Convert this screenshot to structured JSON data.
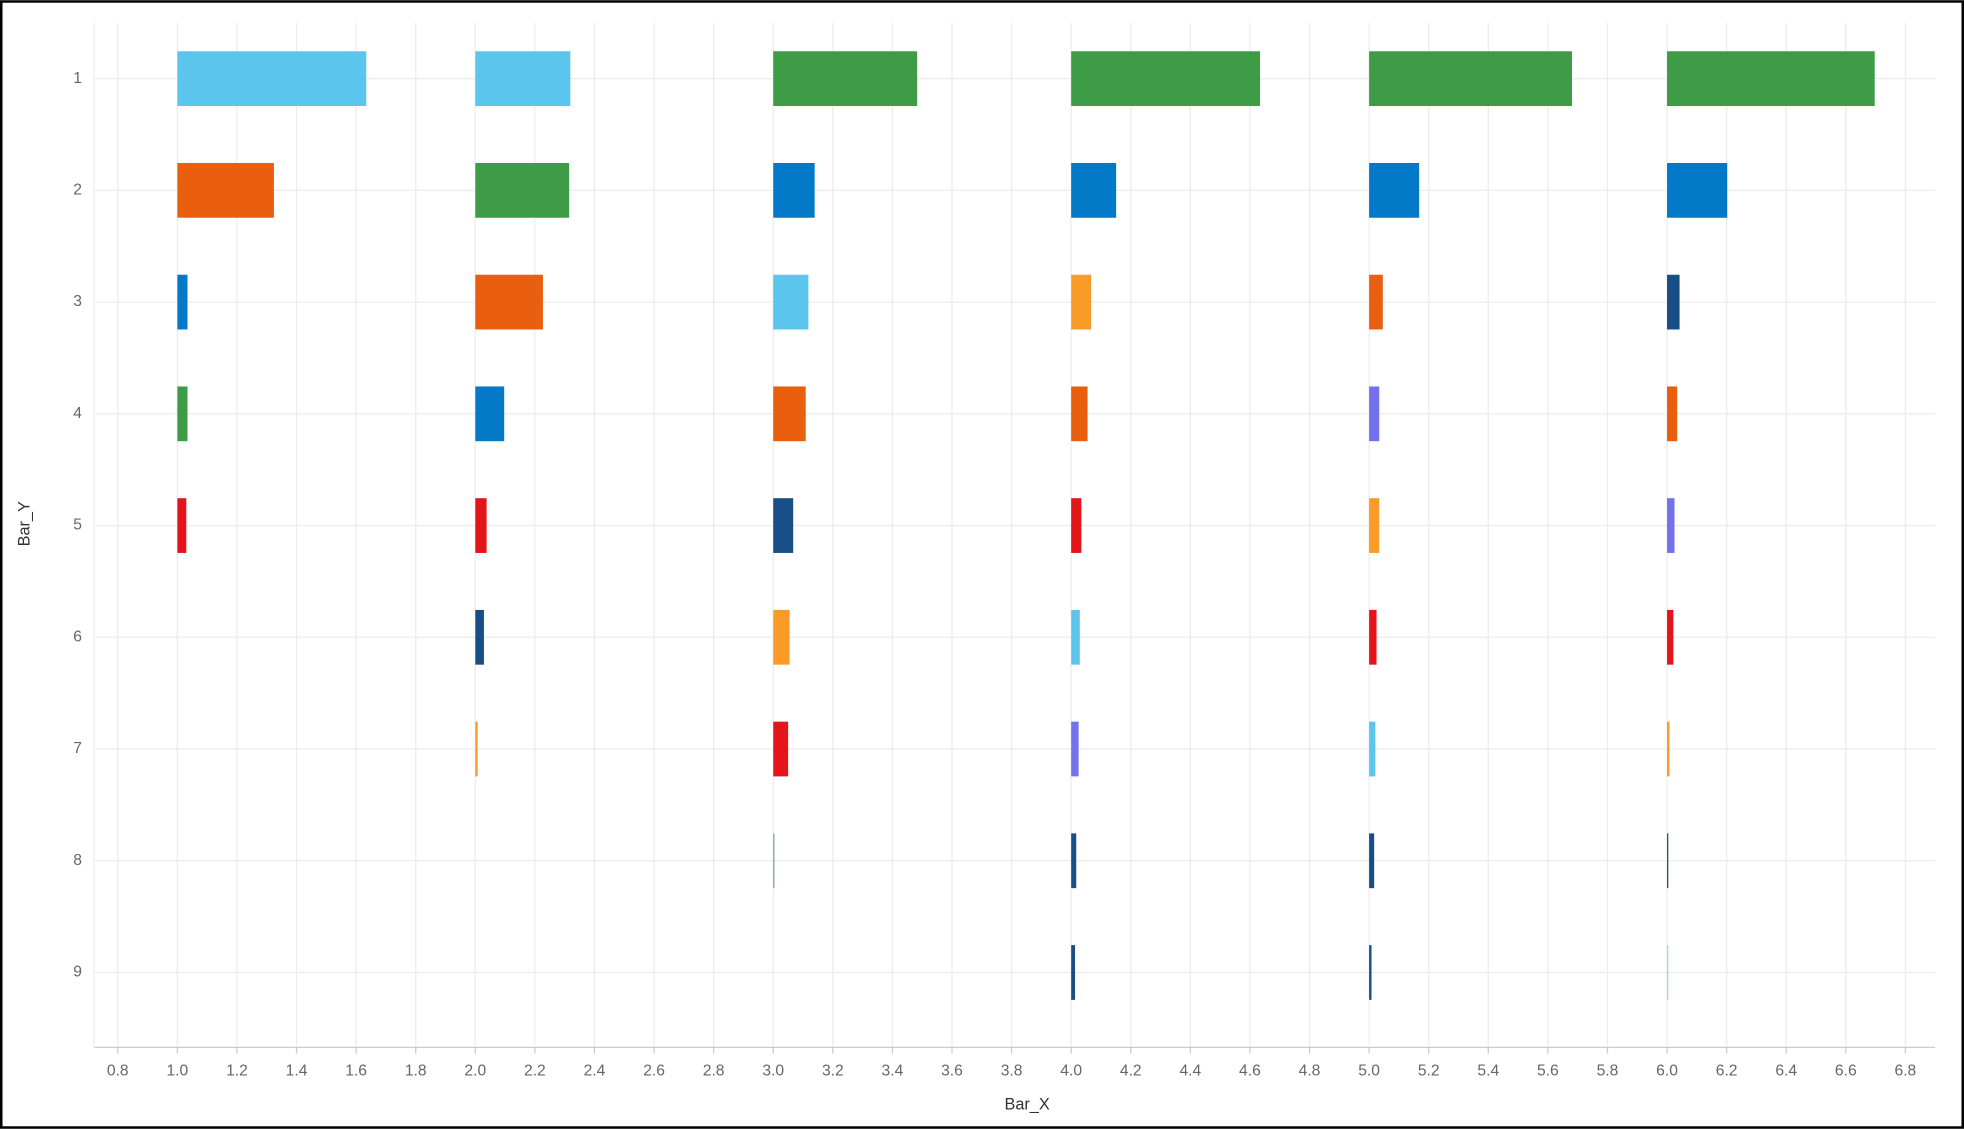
{
  "chart_data": {
    "type": "floating-bar",
    "x_label": "Bar_X",
    "y_label": "Bar_Y",
    "xlim": [
      0.72,
      6.9
    ],
    "xticks": [
      0.8,
      {
        "value": 1,
        "label": "1.0"
      },
      1.2,
      1.4,
      1.6,
      1.8,
      {
        "value": 2,
        "label": "2.0"
      },
      2.2,
      2.4,
      2.6,
      2.8,
      {
        "value": 3,
        "label": "3.0"
      },
      3.2,
      3.4,
      3.6,
      3.8,
      {
        "value": 4,
        "label": "4.0"
      },
      4.2,
      4.4,
      4.6,
      4.8,
      {
        "value": 5,
        "label": "5.0"
      },
      5.2,
      5.4,
      5.6,
      5.8,
      {
        "value": 6,
        "label": "6.0"
      },
      6.2,
      6.4,
      6.6,
      6.8
    ],
    "ylim": [
      0.5,
      9.67
    ],
    "yticks": [
      1,
      2,
      3,
      4,
      5,
      6,
      7,
      8,
      9
    ],
    "grid": true,
    "bars": [
      {
        "y": 1,
        "start": 1,
        "end": 1.634,
        "color": "#5bc5ee"
      },
      {
        "y": 2,
        "start": 1,
        "end": 1.324,
        "color": "#e95e0f"
      },
      {
        "y": 3,
        "start": 1,
        "end": 1.034,
        "color": "#0479c8"
      },
      {
        "y": 4,
        "start": 1,
        "end": 1.034,
        "color": "#3d9c45"
      },
      {
        "y": 5,
        "start": 1,
        "end": 1.03,
        "color": "#e3151a"
      },
      {
        "y": 1,
        "start": 2,
        "end": 2.319,
        "color": "#5bc5ee"
      },
      {
        "y": 2,
        "start": 2,
        "end": 2.315,
        "color": "#3d9c45"
      },
      {
        "y": 3,
        "start": 2,
        "end": 2.227,
        "color": "#e95e0f"
      },
      {
        "y": 4,
        "start": 2,
        "end": 2.097,
        "color": "#0479c8"
      },
      {
        "y": 5,
        "start": 2,
        "end": 2.038,
        "color": "#e3151a"
      },
      {
        "y": 6,
        "start": 2,
        "end": 2.029,
        "color": "#174e86"
      },
      {
        "y": 7,
        "start": 2,
        "end": 2.008,
        "color": "#fa9b27"
      },
      {
        "y": 1,
        "start": 3,
        "end": 3.483,
        "color": "#3d9c45"
      },
      {
        "y": 2,
        "start": 3,
        "end": 3.139,
        "color": "#0479c8"
      },
      {
        "y": 3,
        "start": 3,
        "end": 3.118,
        "color": "#5bc5ee"
      },
      {
        "y": 4,
        "start": 3,
        "end": 3.109,
        "color": "#e95e0f"
      },
      {
        "y": 5,
        "start": 3,
        "end": 3.067,
        "color": "#174e86"
      },
      {
        "y": 6,
        "start": 3,
        "end": 3.055,
        "color": "#fa9b27"
      },
      {
        "y": 7,
        "start": 3,
        "end": 3.05,
        "color": "#e3151a"
      },
      {
        "y": 8,
        "start": 3,
        "end": 3.004,
        "color": "#7f9fb5"
      },
      {
        "y": 1,
        "start": 4,
        "end": 4.634,
        "color": "#3d9c45"
      },
      {
        "y": 2,
        "start": 4,
        "end": 4.151,
        "color": "#0479c8"
      },
      {
        "y": 3,
        "start": 4,
        "end": 4.067,
        "color": "#fa9b27"
      },
      {
        "y": 4,
        "start": 4,
        "end": 4.055,
        "color": "#e95e0f"
      },
      {
        "y": 5,
        "start": 4,
        "end": 4.034,
        "color": "#e3151a"
      },
      {
        "y": 6,
        "start": 4,
        "end": 4.029,
        "color": "#5bc5ee"
      },
      {
        "y": 7,
        "start": 4,
        "end": 4.025,
        "color": "#7471ef"
      },
      {
        "y": 8,
        "start": 4,
        "end": 4.017,
        "color": "#174e86"
      },
      {
        "y": 9,
        "start": 4,
        "end": 4.013,
        "color": "#174e86"
      },
      {
        "y": 1,
        "start": 5,
        "end": 5.681,
        "color": "#3d9c45"
      },
      {
        "y": 2,
        "start": 5,
        "end": 5.168,
        "color": "#0479c8"
      },
      {
        "y": 3,
        "start": 5,
        "end": 5.046,
        "color": "#e95e0f"
      },
      {
        "y": 4,
        "start": 5,
        "end": 5.034,
        "color": "#7471ef"
      },
      {
        "y": 5,
        "start": 5,
        "end": 5.034,
        "color": "#fa9b27"
      },
      {
        "y": 6,
        "start": 5,
        "end": 5.025,
        "color": "#e3151a"
      },
      {
        "y": 7,
        "start": 5,
        "end": 5.021,
        "color": "#5bc5ee"
      },
      {
        "y": 8,
        "start": 5,
        "end": 5.017,
        "color": "#174e86"
      },
      {
        "y": 9,
        "start": 5,
        "end": 5.008,
        "color": "#174e86"
      },
      {
        "y": 1,
        "start": 6,
        "end": 6.697,
        "color": "#3d9c45"
      },
      {
        "y": 2,
        "start": 6,
        "end": 6.202,
        "color": "#0479c8"
      },
      {
        "y": 3,
        "start": 6,
        "end": 6.042,
        "color": "#174e86"
      },
      {
        "y": 4,
        "start": 6,
        "end": 6.034,
        "color": "#e95e0f"
      },
      {
        "y": 5,
        "start": 6,
        "end": 6.025,
        "color": "#7471ef"
      },
      {
        "y": 6,
        "start": 6,
        "end": 6.021,
        "color": "#e3151a"
      },
      {
        "y": 7,
        "start": 6,
        "end": 6.008,
        "color": "#fa9b27"
      },
      {
        "y": 8,
        "start": 6,
        "end": 6.004,
        "color": "#174e86"
      },
      {
        "y": 9,
        "start": 6,
        "end": 6.002,
        "color": "#9ad9e8"
      }
    ]
  }
}
